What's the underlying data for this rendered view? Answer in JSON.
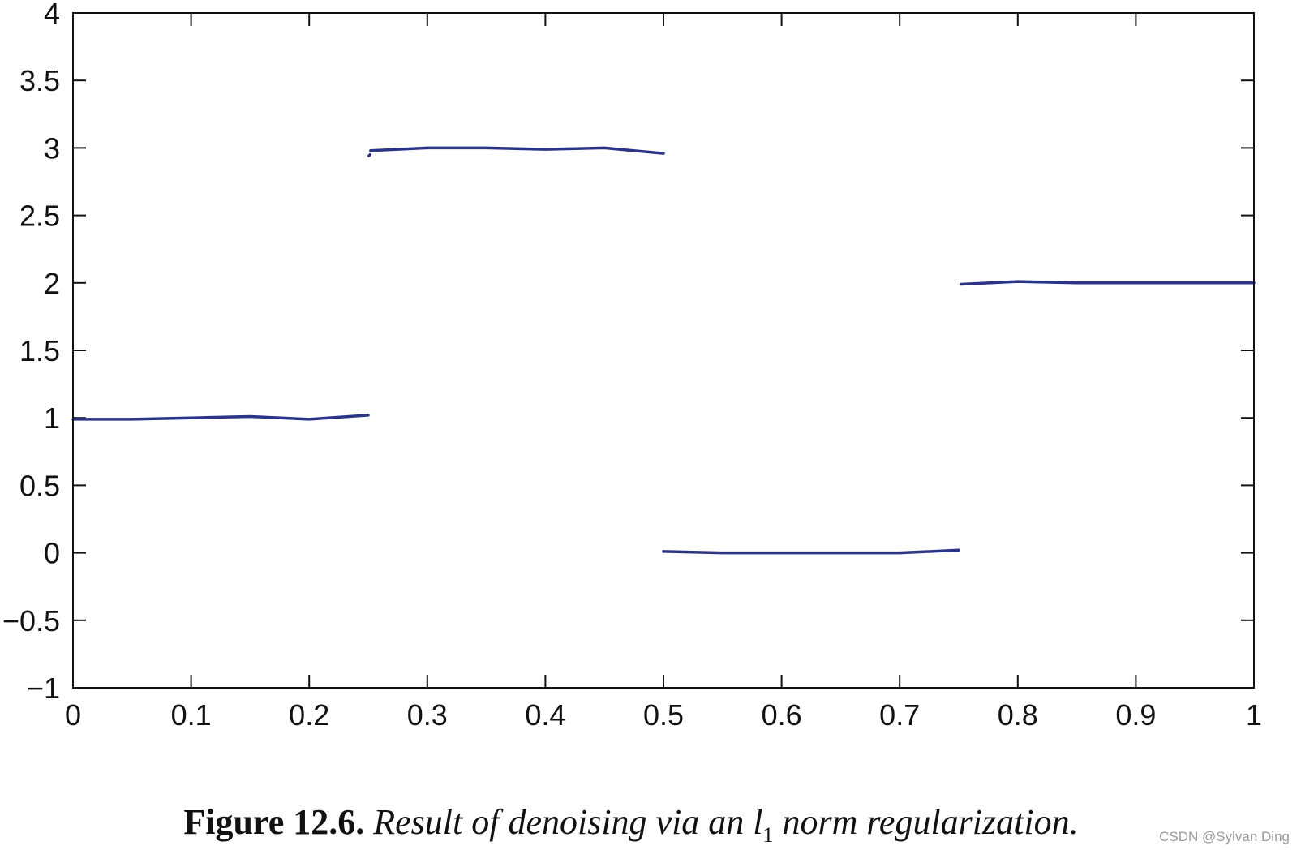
{
  "chart_data": {
    "type": "line",
    "title": "",
    "xlabel": "",
    "ylabel": "",
    "xlim": [
      0,
      1
    ],
    "ylim": [
      -1,
      4
    ],
    "xticks": [
      "0",
      "0.1",
      "0.2",
      "0.3",
      "0.4",
      "0.5",
      "0.6",
      "0.7",
      "0.8",
      "0.9",
      "1"
    ],
    "yticks": [
      "−1",
      "−0.5",
      "0",
      "0.5",
      "1",
      "1.5",
      "2",
      "2.5",
      "3",
      "3.5",
      "4"
    ],
    "grid": false,
    "line_color": "#2a3586",
    "series": [
      {
        "segments": [
          {
            "x": [
              0,
              0.05,
              0.1,
              0.15,
              0.2,
              0.25
            ],
            "y": [
              0.99,
              0.99,
              1.0,
              1.01,
              0.99,
              1.02
            ]
          },
          {
            "x": [
              0.2505,
              0.2515
            ],
            "y": [
              2.94,
              2.95
            ]
          },
          {
            "x": [
              0.252,
              0.3,
              0.35,
              0.4,
              0.45,
              0.5
            ],
            "y": [
              2.98,
              3.0,
              3.0,
              2.99,
              3.0,
              2.96
            ]
          },
          {
            "x": [
              0.5,
              0.55,
              0.6,
              0.65,
              0.7,
              0.75
            ],
            "y": [
              0.01,
              0.0,
              0.0,
              0.0,
              0.0,
              0.02
            ]
          },
          {
            "x": [
              0.752,
              0.8,
              0.85,
              0.9,
              0.95,
              1.0
            ],
            "y": [
              1.99,
              2.01,
              2.0,
              2.0,
              2.0,
              2.0
            ]
          }
        ]
      }
    ]
  },
  "caption": {
    "figure_label": "Figure 12.6.",
    "text_before": "Result of denoising via an ",
    "symbol": "l",
    "subscript": "1",
    "text_after": " norm regularization."
  },
  "watermark": "CSDN @Sylvan Ding"
}
